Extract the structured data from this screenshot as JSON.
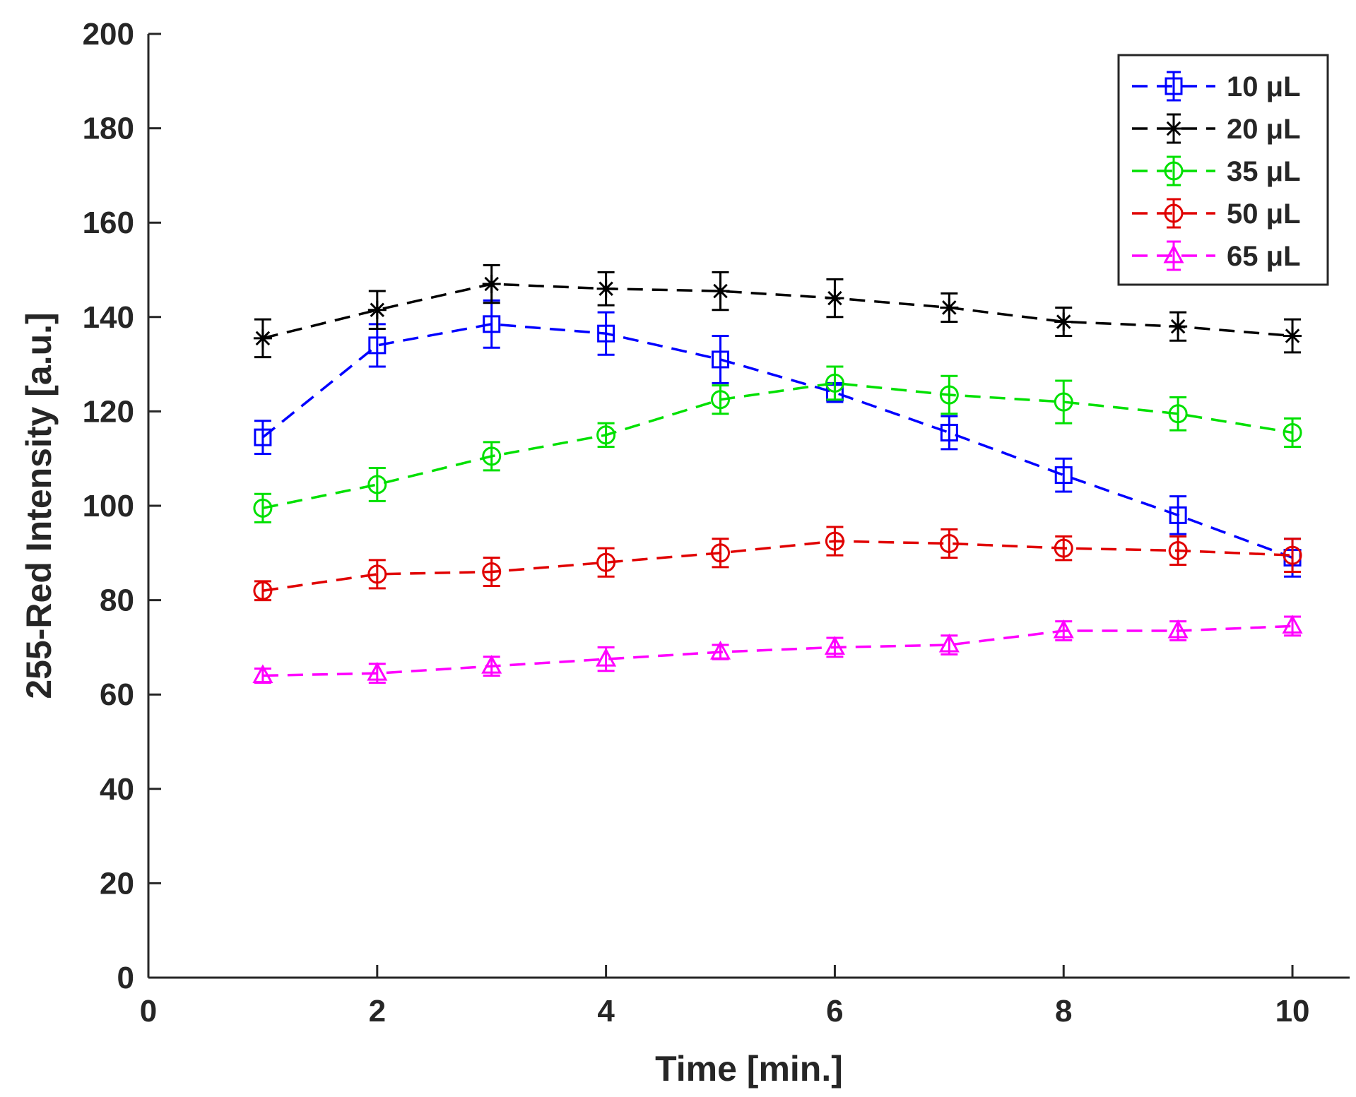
{
  "chart_data": {
    "type": "line",
    "title": "",
    "xlabel": "Time [min.]",
    "ylabel": "255-Red Intensity [a.u.]",
    "xlim": [
      0,
      10.5
    ],
    "ylim": [
      0,
      200
    ],
    "xticks": [
      0,
      2,
      4,
      6,
      8,
      10
    ],
    "yticks": [
      0,
      20,
      40,
      60,
      80,
      100,
      120,
      140,
      160,
      180,
      200
    ],
    "grid": false,
    "legend_position": "top-right",
    "x": [
      1,
      2,
      3,
      4,
      5,
      6,
      7,
      8,
      9,
      10
    ],
    "series": [
      {
        "name": "10 μL",
        "color": "#0000ff",
        "marker": "square",
        "values": [
          114.5,
          134,
          138.5,
          136.5,
          131,
          124,
          115.5,
          106.5,
          98,
          89
        ],
        "errors": [
          3.5,
          4.5,
          5,
          4.5,
          5,
          2,
          3.5,
          3.5,
          4,
          4
        ]
      },
      {
        "name": "20 μL",
        "color": "#000000",
        "marker": "star",
        "values": [
          135.5,
          141.5,
          147,
          146,
          145.5,
          144,
          142,
          139,
          138,
          136
        ],
        "errors": [
          4,
          4,
          4,
          3.5,
          4,
          4,
          3,
          3,
          3,
          3.5
        ]
      },
      {
        "name": "35 μL",
        "color": "#00e000",
        "marker": "circle",
        "values": [
          99.5,
          104.5,
          110.5,
          115,
          122.5,
          126,
          123.5,
          122,
          119.5,
          115.5
        ],
        "errors": [
          3,
          3.5,
          3,
          2.5,
          3,
          3.5,
          4,
          4.5,
          3.5,
          3
        ]
      },
      {
        "name": "50 μL",
        "color": "#e00000",
        "marker": "circle",
        "values": [
          82,
          85.5,
          86,
          88,
          90,
          92.5,
          92,
          91,
          90.5,
          89.5
        ],
        "errors": [
          2,
          3,
          3,
          3,
          3,
          3,
          3,
          2.5,
          3,
          3.5
        ]
      },
      {
        "name": "65 μL",
        "color": "#ff00ff",
        "marker": "triangle",
        "values": [
          64,
          64.5,
          66,
          67.5,
          69,
          70,
          70.5,
          73.5,
          73.5,
          74.5
        ],
        "errors": [
          1.5,
          2,
          2,
          2.5,
          1.5,
          2,
          2,
          2,
          2,
          2
        ]
      }
    ]
  }
}
